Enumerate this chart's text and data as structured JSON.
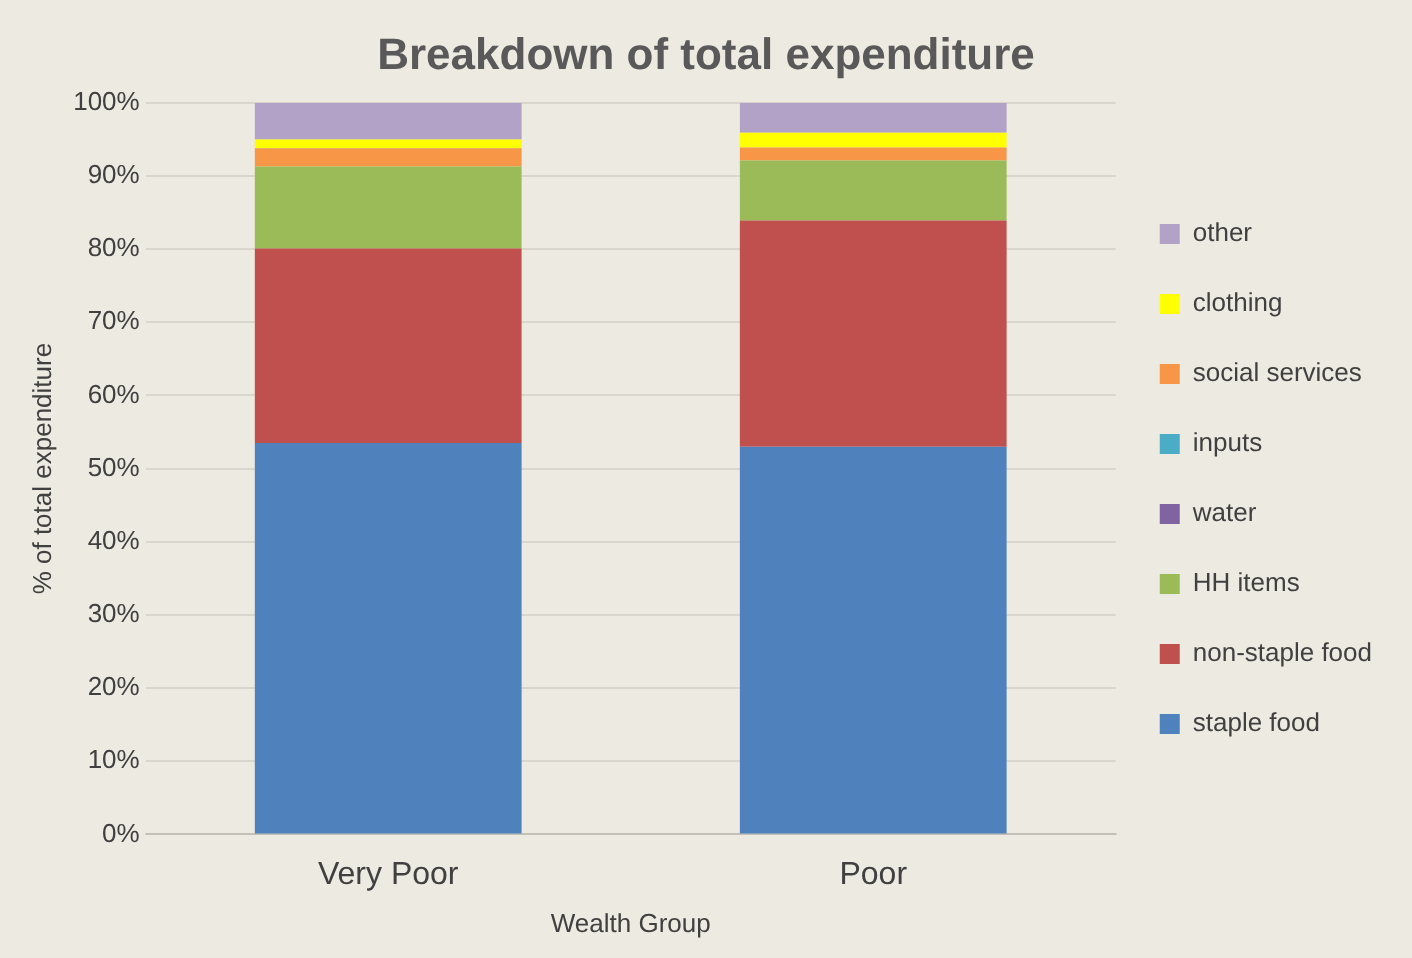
{
  "chart_data": {
    "type": "bar",
    "title": "Breakdown of total expenditure",
    "xlabel": "Wealth Group",
    "ylabel": "% of total expenditure",
    "categories": [
      "Very Poor",
      "Poor"
    ],
    "stacked": true,
    "series": [
      {
        "name": "staple food",
        "color": "#4f81bd",
        "values": [
          53.5,
          53
        ]
      },
      {
        "name": "non-staple food",
        "color": "#c0504d",
        "values": [
          26.6,
          30.9
        ]
      },
      {
        "name": "HH items",
        "color": "#9bbb59",
        "values": [
          11.2,
          8.2
        ]
      },
      {
        "name": "water",
        "color": "#8064a2",
        "values": [
          0,
          0
        ]
      },
      {
        "name": "inputs",
        "color": "#4bacc6",
        "values": [
          0,
          0
        ]
      },
      {
        "name": "social services",
        "color": "#f79646",
        "values": [
          2.5,
          1.8
        ]
      },
      {
        "name": "clothing",
        "color": "#ffff00",
        "values": [
          1.2,
          2.0
        ]
      },
      {
        "name": "other",
        "color": "#b2a2c7",
        "values": [
          5,
          4.1
        ]
      }
    ],
    "ylim": [
      0,
      100
    ],
    "yticks": [
      {
        "value": 0,
        "label": "0%"
      },
      {
        "value": 10,
        "label": "10%"
      },
      {
        "value": 20,
        "label": "20%"
      },
      {
        "value": 30,
        "label": "30%"
      },
      {
        "value": 40,
        "label": "40%"
      },
      {
        "value": 50,
        "label": "50%"
      },
      {
        "value": 60,
        "label": "60%"
      },
      {
        "value": 70,
        "label": "70%"
      },
      {
        "value": 80,
        "label": "80%"
      },
      {
        "value": 90,
        "label": "90%"
      },
      {
        "value": 100,
        "label": "100%"
      }
    ],
    "grid": "y",
    "legend": "right"
  }
}
